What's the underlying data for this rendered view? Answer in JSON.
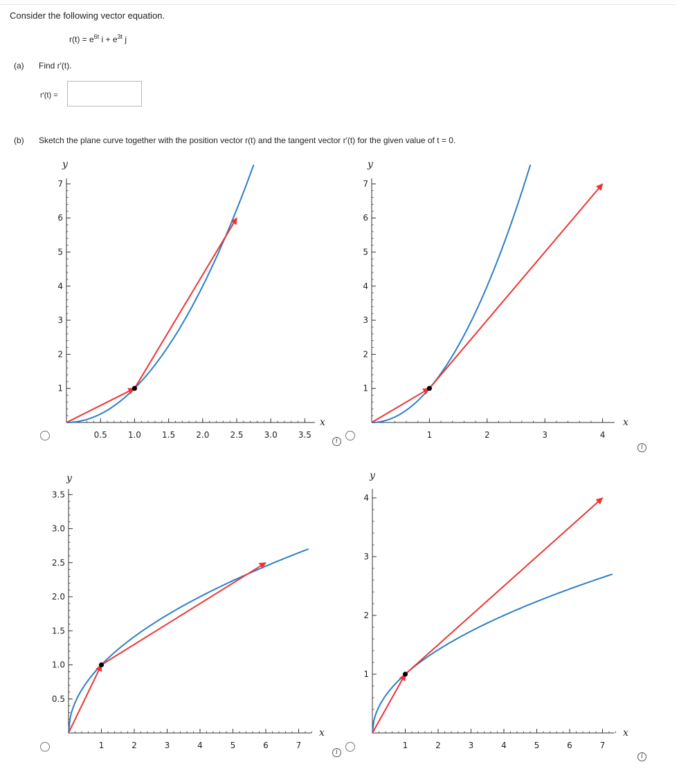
{
  "question": {
    "intro": "Consider the following vector equation.",
    "equation": {
      "lhs": "r(t) = e",
      "exp1": "6t",
      "mid": " i + e",
      "exp2": "3t",
      "tail": " j"
    },
    "part_a": {
      "tag": "(a)",
      "prompt": "Find r′(t).",
      "answer_label": "r′(t) =",
      "answer_value": ""
    },
    "part_b": {
      "tag": "(b)",
      "prompt": "Sketch the plane curve together with the position vector r(t) and the tangent vector r′(t) for the given value of t = 0."
    }
  },
  "colors": {
    "curve": "#2a7fc6",
    "vector": "#ee3333",
    "axis": "#333333",
    "point": "#000000"
  },
  "icons": {
    "radio": "radio-button-icon",
    "info": "info-icon"
  },
  "options": [
    {
      "id": "A",
      "info_glyph": "i"
    },
    {
      "id": "B",
      "info_glyph": "i"
    },
    {
      "id": "C",
      "info_glyph": "i"
    },
    {
      "id": "D",
      "info_glyph": "i"
    }
  ],
  "chart_data": [
    {
      "type": "line",
      "title": "",
      "xlabel": "x",
      "ylabel": "y",
      "xlim": [
        0,
        3.6
      ],
      "ylim": [
        0,
        7.2
      ],
      "xticks": [
        "0.5",
        "1.0",
        "1.5",
        "2.0",
        "2.5",
        "3.0",
        "3.5"
      ],
      "yticks": [
        "1",
        "2",
        "3",
        "4",
        "5",
        "6",
        "7"
      ],
      "curve": {
        "relation": "y = x^2",
        "x_range": [
          0,
          2.75
        ]
      },
      "point": [
        1,
        1
      ],
      "vectors": [
        {
          "from": [
            0,
            0
          ],
          "to": [
            1,
            1
          ]
        },
        {
          "from": [
            1,
            1
          ],
          "to": [
            2.5,
            6
          ]
        }
      ]
    },
    {
      "type": "line",
      "title": "",
      "xlabel": "x",
      "ylabel": "y",
      "xlim": [
        0,
        4.2
      ],
      "ylim": [
        0,
        7.2
      ],
      "xticks": [
        "1",
        "2",
        "3",
        "4"
      ],
      "yticks": [
        "1",
        "2",
        "3",
        "4",
        "5",
        "6",
        "7"
      ],
      "curve": {
        "relation": "y = x^2",
        "x_range": [
          0,
          2.75
        ]
      },
      "point": [
        1,
        1
      ],
      "vectors": [
        {
          "from": [
            0,
            0
          ],
          "to": [
            1,
            1
          ]
        },
        {
          "from": [
            1,
            1
          ],
          "to": [
            4,
            7
          ]
        }
      ]
    },
    {
      "type": "line",
      "title": "",
      "xlabel": "x",
      "ylabel": "y",
      "xlim": [
        0,
        7.5
      ],
      "ylim": [
        0,
        3.6
      ],
      "xticks": [
        "1",
        "2",
        "3",
        "4",
        "5",
        "6",
        "7"
      ],
      "yticks": [
        "0.5",
        "1.0",
        "1.5",
        "2.0",
        "2.5",
        "3.0",
        "3.5"
      ],
      "curve": {
        "relation": "y = sqrt(x)",
        "x_range": [
          0,
          7.3
        ]
      },
      "point": [
        1,
        1
      ],
      "vectors": [
        {
          "from": [
            0,
            0
          ],
          "to": [
            1,
            1
          ]
        },
        {
          "from": [
            1,
            1
          ],
          "to": [
            6,
            2.5
          ]
        }
      ]
    },
    {
      "type": "line",
      "title": "",
      "xlabel": "x",
      "ylabel": "y",
      "xlim": [
        0,
        7.5
      ],
      "ylim": [
        0,
        4.2
      ],
      "xticks": [
        "1",
        "2",
        "3",
        "4",
        "5",
        "6",
        "7"
      ],
      "yticks": [
        "1",
        "2",
        "3",
        "4"
      ],
      "curve": {
        "relation": "y = sqrt(x)",
        "x_range": [
          0,
          7.3
        ]
      },
      "point": [
        1,
        1
      ],
      "vectors": [
        {
          "from": [
            0,
            0
          ],
          "to": [
            1,
            1
          ]
        },
        {
          "from": [
            1,
            1
          ],
          "to": [
            7,
            4
          ]
        }
      ]
    }
  ]
}
